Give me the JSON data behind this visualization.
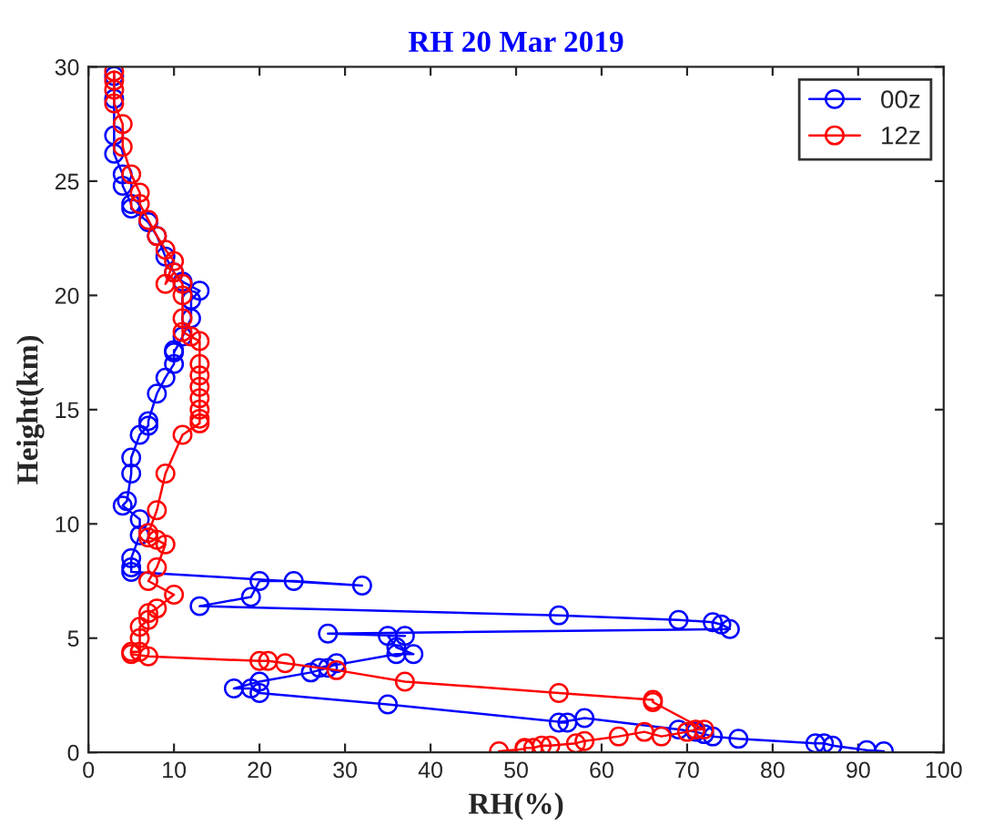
{
  "chart_data": {
    "type": "line",
    "title": "RH 20 Mar 2019",
    "xlabel": "RH(%)",
    "ylabel": "Height(km)",
    "xlim": [
      0,
      100
    ],
    "xticks": [
      0,
      10,
      20,
      30,
      40,
      50,
      60,
      70,
      80,
      90,
      100
    ],
    "ylim": [
      0,
      30
    ],
    "yticks": [
      0,
      5,
      10,
      15,
      20,
      25,
      30
    ],
    "grid": false,
    "legend": "top right",
    "marker": "circle",
    "line_style": "solid",
    "series": [
      {
        "name": "00z",
        "color": "#0000ff",
        "x": [
          93,
          91,
          87,
          86,
          85,
          76,
          73,
          72,
          71,
          69,
          58,
          55,
          56,
          35,
          20,
          19,
          17,
          20,
          26,
          28,
          29,
          27,
          36,
          38,
          36,
          35,
          37,
          28,
          75,
          74,
          73,
          69,
          55,
          13,
          19,
          20,
          24,
          32,
          5,
          5,
          5,
          6,
          6,
          4,
          4.5,
          5,
          5,
          6,
          7,
          7,
          8,
          9,
          10,
          10,
          10,
          11,
          12,
          12,
          13,
          11,
          10,
          9,
          8,
          7,
          5,
          5,
          4,
          4,
          3,
          3,
          3,
          3
        ],
        "values": [
          0.05,
          0.1,
          0.3,
          0.4,
          0.4,
          0.6,
          0.7,
          0.8,
          0.9,
          1.0,
          1.5,
          1.3,
          1.3,
          2.1,
          2.6,
          2.8,
          2.8,
          3.1,
          3.5,
          3.7,
          3.9,
          3.7,
          4.3,
          4.3,
          4.6,
          5.1,
          5.1,
          5.2,
          5.4,
          5.6,
          5.7,
          5.8,
          6.0,
          6.4,
          6.8,
          7.5,
          7.5,
          7.3,
          7.9,
          8.1,
          8.5,
          9.5,
          10.2,
          10.8,
          11,
          12.2,
          12.9,
          13.9,
          14.3,
          14.5,
          15.7,
          16.4,
          17,
          17.6,
          17.5,
          18.2,
          19,
          19.8,
          20.2,
          20.6,
          21,
          21.7,
          22.6,
          23.2,
          23.8,
          24,
          24.8,
          25.3,
          26.2,
          27,
          28.6,
          29.6
        ]
      },
      {
        "name": "12z",
        "color": "#ff0000",
        "x": [
          48,
          51,
          51,
          52,
          53,
          54,
          57,
          58,
          62,
          65,
          67,
          70,
          71,
          72,
          66,
          66,
          55,
          37,
          29,
          23,
          21,
          20,
          7,
          5,
          5,
          6,
          6,
          6,
          7,
          7,
          8,
          10,
          7,
          8,
          9,
          8,
          7,
          7,
          8,
          9,
          11,
          13,
          13,
          13,
          13,
          13,
          13,
          13,
          13,
          12,
          11,
          11,
          11,
          11,
          10,
          9,
          10,
          9,
          8,
          7,
          6,
          6,
          5,
          4,
          4,
          3,
          3,
          3,
          3
        ],
        "values": [
          0.05,
          0.15,
          0.2,
          0.2,
          0.3,
          0.3,
          0.4,
          0.5,
          0.7,
          0.9,
          0.7,
          0.9,
          1.0,
          1.0,
          2.2,
          2.3,
          2.6,
          3.1,
          3.6,
          3.9,
          4.0,
          4.0,
          4.2,
          4.3,
          4.4,
          4.4,
          5.0,
          5.5,
          5.8,
          6.1,
          6.3,
          6.9,
          7.5,
          8.1,
          9.1,
          9.3,
          9.4,
          9.6,
          10.6,
          12.2,
          13.9,
          14.4,
          14.6,
          15,
          15.5,
          16,
          16.5,
          17,
          18,
          18.2,
          18.4,
          19,
          20,
          20.5,
          21,
          20.5,
          21.5,
          22,
          22.6,
          23.3,
          24,
          24.5,
          25.3,
          26.5,
          27.5,
          28.4,
          29,
          29.4,
          29.8
        ]
      }
    ]
  }
}
